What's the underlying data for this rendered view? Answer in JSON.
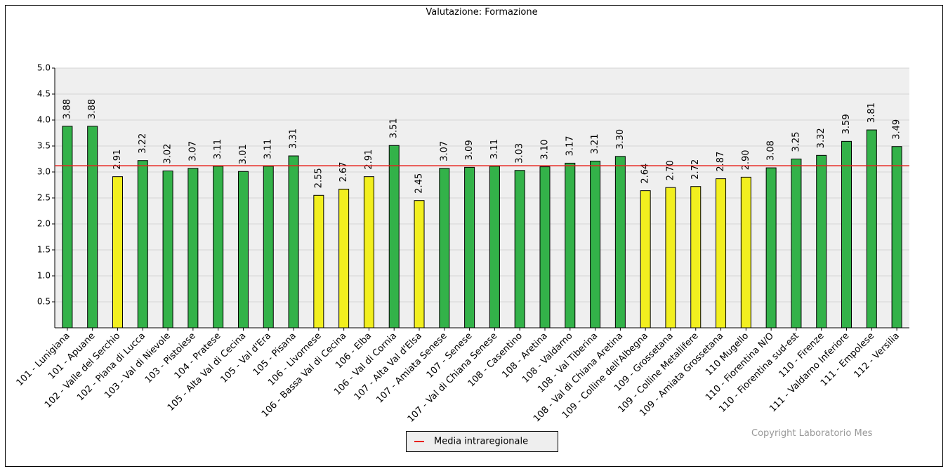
{
  "chart_data": {
    "type": "bar",
    "title": "Valutazione: Formazione",
    "categories": [
      "101 - Lunigiana",
      "101 - Apuane",
      "102 - Valle del Serchio",
      "102 - Piana di Lucca",
      "103 - Val di Nievole",
      "103 - Pistoiese",
      "104 - Pratese",
      "105 - Alta Val di Cecina",
      "105 - Val d'Era",
      "105 - Pisana",
      "106 - Livornese",
      "106 - Bassa Val di Cecina",
      "106 - Elba",
      "106 - Val di Cornia",
      "107 - Alta Val d'Elsa",
      "107 - Amiata Senese",
      "107 - Senese",
      "107 - Val di Chiana Senese",
      "108 - Casentino",
      "108 - Aretina",
      "108 - Valdarno",
      "108 - Val Tiberina",
      "108 - Val di Chiana Aretina",
      "109 - Colline dell'Albegna",
      "109 - Grossetana",
      "109 - Colline Metallifere",
      "109 - Amiata Grossetana",
      "110 Mugello",
      "110 - Fiorentina N/O",
      "110 - Fiorentina sud-est",
      "110 - Firenze",
      "111 - Valdarno Inferiore",
      "111 - Empolese",
      "112 - Versilia"
    ],
    "values": [
      3.88,
      3.88,
      2.91,
      3.22,
      3.02,
      3.07,
      3.11,
      3.01,
      3.11,
      3.31,
      2.55,
      2.67,
      2.91,
      3.51,
      2.45,
      3.07,
      3.09,
      3.11,
      3.03,
      3.1,
      3.17,
      3.21,
      3.3,
      2.64,
      2.7,
      2.72,
      2.87,
      2.9,
      3.08,
      3.25,
      3.32,
      3.59,
      3.81,
      3.49
    ],
    "value_labels": [
      "3.88",
      "3.88",
      "2.91",
      "3.22",
      "3.02",
      "3.07",
      "3.11",
      "3.01",
      "3.11",
      "3.31",
      "2.55",
      "2.67",
      "2.91",
      "3.51",
      "2.45",
      "3.07",
      "3.09",
      "3.11",
      "3.03",
      "3.10",
      "3.17",
      "3.21",
      "3.30",
      "2.64",
      "2.70",
      "2.72",
      "2.87",
      "2.90",
      "3.08",
      "3.25",
      "3.32",
      "3.59",
      "3.81",
      "3.49"
    ],
    "colors": [
      "#33b249",
      "#33b249",
      "#f2ef1f",
      "#33b249",
      "#33b249",
      "#33b249",
      "#33b249",
      "#33b249",
      "#33b249",
      "#33b249",
      "#f2ef1f",
      "#f2ef1f",
      "#f2ef1f",
      "#33b249",
      "#f2ef1f",
      "#33b249",
      "#33b249",
      "#33b249",
      "#33b249",
      "#33b249",
      "#33b249",
      "#33b249",
      "#33b249",
      "#f2ef1f",
      "#f2ef1f",
      "#f2ef1f",
      "#f2ef1f",
      "#f2ef1f",
      "#33b249",
      "#33b249",
      "#33b249",
      "#33b249",
      "#33b249",
      "#33b249"
    ],
    "ylim": [
      0,
      5
    ],
    "yticks": [
      0.5,
      {
        "value": 1,
        "label": "1.0"
      },
      1.5,
      {
        "value": 2,
        "label": "2.0"
      },
      2.5,
      {
        "value": 3,
        "label": "3.0"
      },
      3.5,
      {
        "value": 4,
        "label": "4.0"
      },
      4.5,
      {
        "value": 5,
        "label": "5.0"
      }
    ],
    "grid": true,
    "reference_line": {
      "name": "Media intraregionale",
      "value": 3.12,
      "color": "#e8201c"
    },
    "legend": "bottom",
    "annotation": "Copyright Laboratorio Mes"
  }
}
